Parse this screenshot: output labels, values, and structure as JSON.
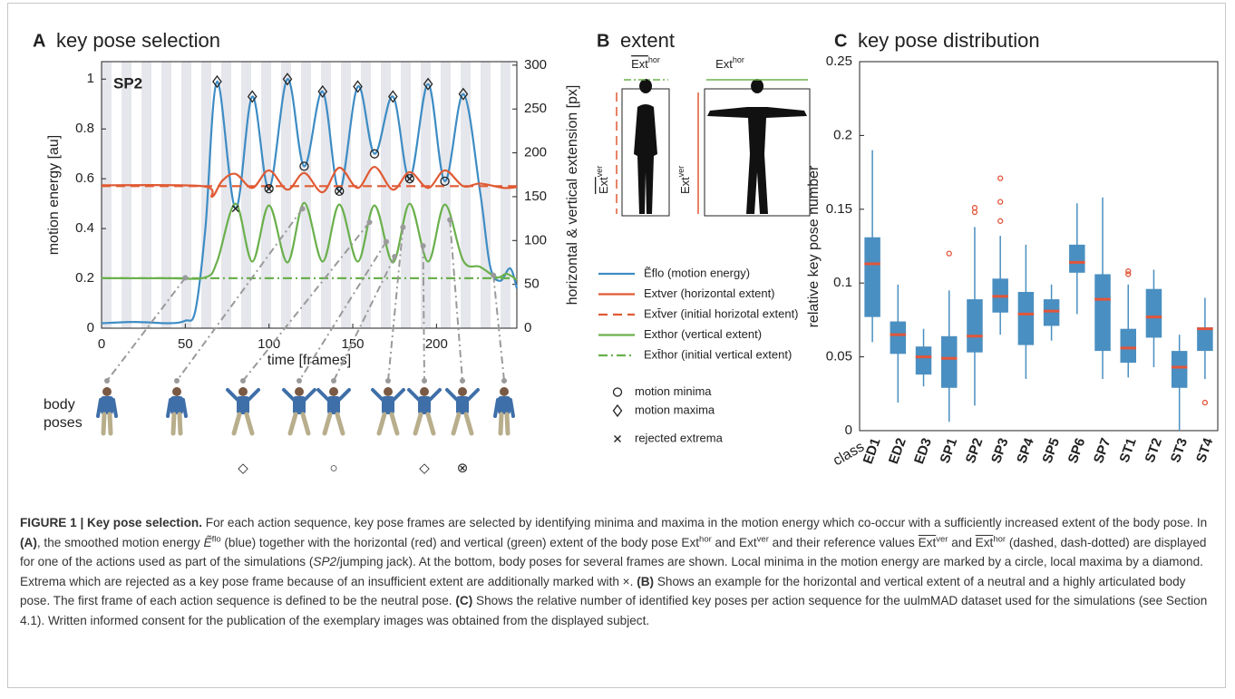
{
  "chart_data": [
    {
      "type": "line",
      "panel": "A",
      "title": "key pose selection",
      "annotation": "SP2",
      "xlabel": "time [frames]",
      "ylabel": "motion energy [au]",
      "y2label": "horizontal & vertical extension [px]",
      "xlim": [
        0,
        248
      ],
      "xticks": [
        0,
        50,
        100,
        150,
        200
      ],
      "ylim": [
        0,
        1.07
      ],
      "yticks": [
        0,
        0.2,
        0.4,
        0.6,
        0.8,
        1
      ],
      "y2lim": [
        0,
        304
      ],
      "y2ticks": [
        0,
        50,
        100,
        150,
        200,
        250,
        300
      ],
      "series": [
        {
          "name": "Ẽflo (motion energy)",
          "color": "#3d8cc4",
          "dash": "solid",
          "x": [
            0,
            20,
            40,
            50,
            56,
            62,
            69,
            80,
            90,
            100,
            111,
            121,
            132,
            142,
            153,
            163,
            174,
            184,
            195,
            205,
            216,
            226,
            232,
            238,
            244,
            248
          ],
          "values": [
            0.02,
            0.025,
            0.02,
            0.03,
            0.07,
            0.4,
            0.99,
            0.48,
            0.93,
            0.56,
            1.0,
            0.65,
            0.95,
            0.55,
            0.97,
            0.7,
            0.93,
            0.6,
            0.98,
            0.59,
            0.94,
            0.55,
            0.25,
            0.19,
            0.24,
            0.16
          ]
        },
        {
          "name": "Extver (horizontal extent)",
          "color": "#e05a33",
          "dash": "solid",
          "axis": "y2",
          "x": [
            0,
            60,
            66,
            72,
            80,
            90,
            100,
            111,
            121,
            132,
            142,
            153,
            163,
            174,
            184,
            195,
            205,
            216,
            226,
            240,
            248
          ],
          "values": [
            163,
            162,
            150,
            168,
            176,
            160,
            180,
            158,
            177,
            155,
            183,
            160,
            184,
            158,
            178,
            160,
            180,
            162,
            165,
            160,
            161
          ]
        },
        {
          "name": "Ext̄ver (initial horizotal extent)",
          "color": "#e05a33",
          "dash": "dashed",
          "axis": "y2",
          "x": [
            0,
            248
          ],
          "values": [
            162,
            162
          ]
        },
        {
          "name": "Exthor (vertical extent)",
          "color": "#6ab04c",
          "dash": "solid",
          "axis": "y2",
          "x": [
            0,
            40,
            62,
            69,
            80,
            90,
            100,
            111,
            121,
            132,
            142,
            153,
            163,
            174,
            184,
            195,
            205,
            216,
            226,
            236,
            242,
            248
          ],
          "values": [
            57,
            57,
            58,
            76,
            142,
            76,
            140,
            75,
            143,
            76,
            141,
            76,
            140,
            75,
            142,
            76,
            141,
            77,
            70,
            58,
            62,
            55
          ]
        },
        {
          "name": "Ext̄hor (initial vertical extent)",
          "color": "#6ab04c",
          "dash": "dashdot",
          "axis": "y2",
          "x": [
            0,
            248
          ],
          "values": [
            57,
            57
          ]
        },
        {
          "name": "motion minima",
          "color": "#222222",
          "marker": "circle",
          "x": [
            100,
            121,
            142,
            163,
            184,
            205
          ],
          "values": [
            0.56,
            0.65,
            0.55,
            0.7,
            0.6,
            0.59
          ]
        },
        {
          "name": "motion maxima",
          "color": "#222222",
          "marker": "diamond",
          "x": [
            69,
            90,
            111,
            132,
            153,
            174,
            195,
            216
          ],
          "values": [
            0.99,
            0.93,
            1.0,
            0.95,
            0.97,
            0.93,
            0.98,
            0.94
          ]
        },
        {
          "name": "rejected extrema",
          "color": "#222222",
          "marker": "cross",
          "x": [
            80,
            100,
            142,
            184
          ],
          "values": [
            0.48,
            0.56,
            0.55,
            0.6
          ]
        }
      ],
      "body_poses": {
        "label_lines": [
          "body",
          "poses"
        ],
        "frames": [
          50,
          120,
          160,
          170,
          175,
          180,
          192,
          208,
          234
        ],
        "symbols": [
          null,
          null,
          "◇",
          null,
          "○",
          null,
          "◇",
          "⊗",
          null
        ]
      }
    },
    {
      "type": "box",
      "panel": "C",
      "title": "key pose distribution",
      "ylabel": "relative key pose number",
      "xlabel": "class",
      "categories": [
        "ED1",
        "ED2",
        "ED3",
        "SP1",
        "SP2",
        "SP3",
        "SP4",
        "SP5",
        "SP6",
        "SP7",
        "ST1",
        "ST2",
        "ST3",
        "ST4"
      ],
      "ylim": [
        0,
        0.25
      ],
      "yticks": [
        0,
        0.05,
        0.1,
        0.15,
        0.2,
        0.25
      ],
      "color": "#4a8fc1",
      "median_color": "#e2553a",
      "low": [
        0.06,
        0.019,
        0.03,
        0.006,
        0.017,
        0.065,
        0.035,
        0.061,
        0.079,
        0.035,
        0.036,
        0.043,
        0.0,
        0.035
      ],
      "q1": [
        0.077,
        0.052,
        0.038,
        0.029,
        0.053,
        0.08,
        0.058,
        0.071,
        0.107,
        0.054,
        0.046,
        0.063,
        0.029,
        0.054
      ],
      "median": [
        0.113,
        0.065,
        0.05,
        0.049,
        0.064,
        0.091,
        0.079,
        0.081,
        0.114,
        0.089,
        0.056,
        0.077,
        0.043,
        0.069
      ],
      "q3": [
        0.131,
        0.074,
        0.057,
        0.064,
        0.089,
        0.103,
        0.094,
        0.089,
        0.126,
        0.106,
        0.069,
        0.096,
        0.054,
        0.07
      ],
      "high": [
        0.19,
        0.099,
        0.069,
        0.095,
        0.138,
        0.132,
        0.126,
        0.099,
        0.154,
        0.158,
        0.099,
        0.109,
        0.065,
        0.09
      ],
      "outliers": [
        [],
        [],
        [],
        [
          0.12
        ],
        [
          0.148,
          0.151
        ],
        [
          0.142,
          0.155,
          0.171
        ],
        [],
        [],
        [],
        [],
        [
          0.106,
          0.108
        ],
        [],
        [],
        [
          0.019
        ]
      ]
    }
  ],
  "panel_b": {
    "panel": "B",
    "title": "extent",
    "labels": [
      {
        "base": "Ext",
        "sup": "hor",
        "overline": true
      },
      {
        "base": "Ext",
        "sup": "hor",
        "overline": false
      },
      {
        "base": "Ext",
        "sup": "ver",
        "overline": true
      },
      {
        "base": "Ext",
        "sup": "ver",
        "overline": false
      }
    ]
  },
  "caption": {
    "runs": [
      {
        "text": "FIGURE 1 | Key pose selection.",
        "style": "bold"
      },
      {
        "text": " For each action sequence, key pose frames are selected by identifying minima and maxima in the motion energy which co-occur with a sufficiently increased extent of the body pose. In ",
        "style": "normal"
      },
      {
        "text": "(A)",
        "style": "bold"
      },
      {
        "text": ", the smoothed motion energy ",
        "style": "normal"
      },
      {
        "text": "Ẽ",
        "style": "italic"
      },
      {
        "text": "flo",
        "style": "sup"
      },
      {
        "text": " (blue) together with the horizontal (red) and vertical (green) extent of the body pose Ext",
        "style": "normal"
      },
      {
        "text": "hor",
        "style": "sup"
      },
      {
        "text": " and Ext",
        "style": "normal"
      },
      {
        "text": "ver",
        "style": "sup"
      },
      {
        "text": " and their reference values ",
        "style": "normal"
      },
      {
        "text": "Ext",
        "style": "overline"
      },
      {
        "text": "ver",
        "style": "sup"
      },
      {
        "text": " and ",
        "style": "normal"
      },
      {
        "text": "Ext",
        "style": "overline"
      },
      {
        "text": "hor",
        "style": "sup"
      },
      {
        "text": " (dashed, dash-dotted) are displayed for one of the actions used as part of the simulations (",
        "style": "normal"
      },
      {
        "text": "SP2",
        "style": "italic"
      },
      {
        "text": "/jumping jack). At the bottom, body poses for several frames are shown. Local minima in the motion energy are marked by a circle, local maxima by a diamond. Extrema which are rejected as a key pose frame because of an insufficient extent are additionally marked with ×. ",
        "style": "normal"
      },
      {
        "text": "(B)",
        "style": "bold"
      },
      {
        "text": " Shows an example for the horizontal and vertical extent of a neutral and a highly articulated body pose. The first frame of each action sequence is defined to be the neutral pose. ",
        "style": "normal"
      },
      {
        "text": "(C)",
        "style": "bold"
      },
      {
        "text": " Shows the relative number of identified key poses per action sequence for the uulmMAD dataset used for the simulations (see Section 4.1). Written informed consent for the publication of the exemplary images was obtained from the displayed subject.",
        "style": "normal"
      }
    ]
  }
}
